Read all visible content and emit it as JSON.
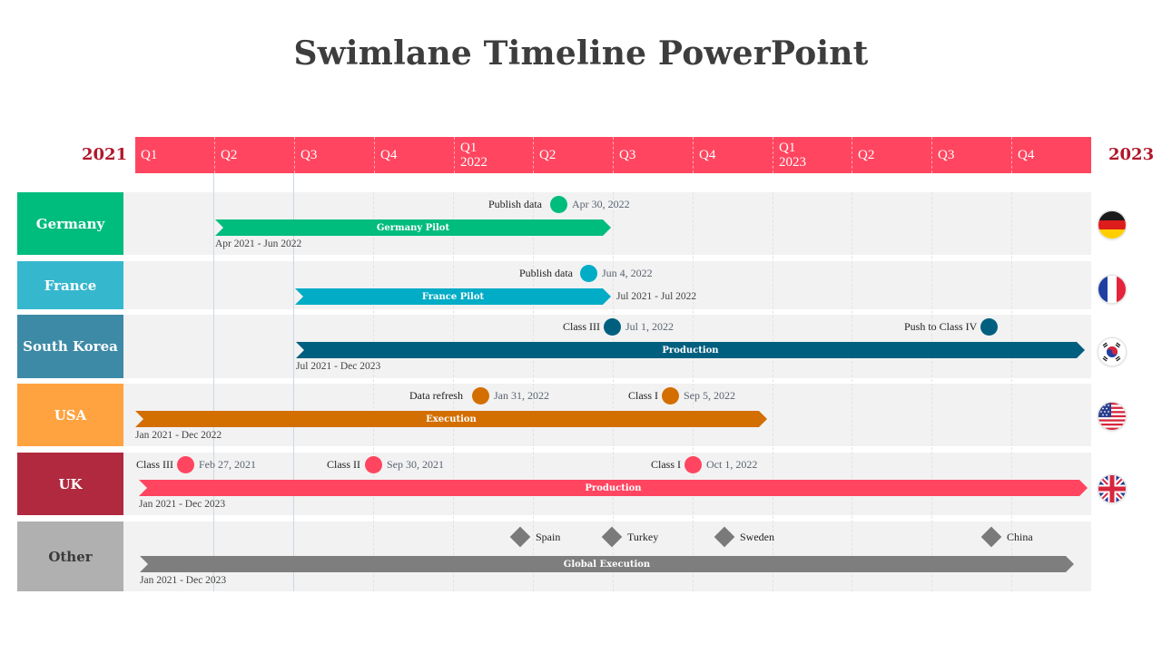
{
  "title": "Swimlane Timeline PowerPoint",
  "years": {
    "start": "2021",
    "end": "2023"
  },
  "quarters": [
    {
      "q": "Q1",
      "year": ""
    },
    {
      "q": "Q2",
      "year": ""
    },
    {
      "q": "Q3",
      "year": ""
    },
    {
      "q": "Q4",
      "year": ""
    },
    {
      "q": "Q1",
      "year": "2022"
    },
    {
      "q": "Q2",
      "year": ""
    },
    {
      "q": "Q3",
      "year": ""
    },
    {
      "q": "Q4",
      "year": ""
    },
    {
      "q": "Q1",
      "year": "2023"
    },
    {
      "q": "Q2",
      "year": ""
    },
    {
      "q": "Q3",
      "year": ""
    },
    {
      "q": "Q4",
      "year": ""
    }
  ],
  "colors": {
    "quarter_bar": "#ff4560",
    "year_text": "#b0182a",
    "germany": "#00bc7d",
    "france_label": "#35b7ce",
    "france": "#00acc6",
    "south_korea_label": "#3d8aa6",
    "south_korea": "#005f7f",
    "usa_label": "#ffa341",
    "usa": "#d36e00",
    "uk_label": "#b0293f",
    "uk": "#ff4560",
    "other_label": "#b0b0b0",
    "other": "#7e7e7e"
  },
  "lanes": {
    "germany": {
      "label": "Germany",
      "bar": "Germany Pilot",
      "range": "Apr 2021 - Jun 2022",
      "milestones": [
        {
          "label": "Publish data",
          "date": "Apr 30, 2022"
        }
      ],
      "flag": "germany-flag"
    },
    "france": {
      "label": "France",
      "bar": "France Pilot",
      "range": "Jul 2021 - Jul 2022",
      "milestones": [
        {
          "label": "Publish data",
          "date": "Jun 4, 2022"
        }
      ],
      "flag": "france-flag"
    },
    "south_korea": {
      "label": "South Korea",
      "bar": "Production",
      "range": "Jul 2021 - Dec 2023",
      "milestones": [
        {
          "label": "Class III",
          "date": "Jul 1, 2022"
        },
        {
          "label": "Push to Class IV",
          "date": ""
        }
      ],
      "flag": "south-korea-flag"
    },
    "usa": {
      "label": "USA",
      "bar": "Execution",
      "range": "Jan 2021 - Dec 2022",
      "milestones": [
        {
          "label": "Data refresh",
          "date": "Jan 31, 2022"
        },
        {
          "label": "Class I",
          "date": "Sep 5, 2022"
        }
      ],
      "flag": "usa-flag"
    },
    "uk": {
      "label": "UK",
      "bar": "Production",
      "range": "Jan 2021 - Dec 2023",
      "milestones": [
        {
          "label": "Class III",
          "date": "Feb 27, 2021"
        },
        {
          "label": "Class II",
          "date": "Sep 30, 2021"
        },
        {
          "label": "Class I",
          "date": "Oct 1, 2022"
        }
      ],
      "flag": "uk-flag"
    },
    "other": {
      "label": "Other",
      "bar": "Global Execution",
      "range": "Jan 2021 - Dec 2023",
      "milestones": [
        {
          "label": "Spain"
        },
        {
          "label": "Turkey"
        },
        {
          "label": "Sweden"
        },
        {
          "label": "China"
        }
      ]
    }
  }
}
